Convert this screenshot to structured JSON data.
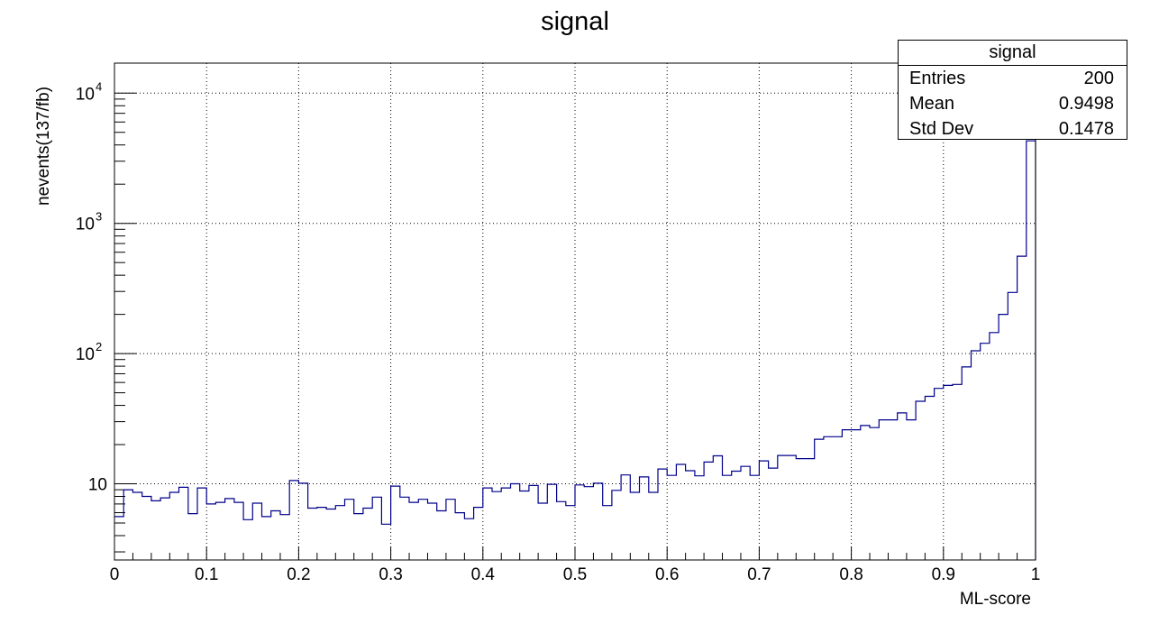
{
  "chart_data": {
    "type": "histogram",
    "title": "signal",
    "xlabel": "ML-score",
    "ylabel": "nevents(137/fb)",
    "xlim": [
      0,
      1
    ],
    "ylim": [
      2.6,
      17000
    ],
    "yscale": "log",
    "grid": true,
    "line_color": "#00008b",
    "bin_width": 0.01,
    "x_ticks": [
      "0",
      "0.1",
      "0.2",
      "0.3",
      "0.4",
      "0.5",
      "0.6",
      "0.7",
      "0.8",
      "0.9",
      "1"
    ],
    "y_ticks": [
      {
        "value": 10,
        "base": "10",
        "exp": ""
      },
      {
        "value": 100,
        "base": "10",
        "exp": "2"
      },
      {
        "value": 1000,
        "base": "10",
        "exp": "3"
      },
      {
        "value": 10000,
        "base": "10",
        "exp": "4"
      }
    ],
    "bin_values": [
      5.6,
      9.0,
      8.6,
      8.0,
      7.4,
      7.8,
      8.6,
      9.4,
      5.9,
      9.3,
      7.0,
      7.2,
      7.7,
      7.2,
      5.3,
      7.1,
      5.6,
      6.2,
      5.8,
      10.6,
      10.1,
      6.5,
      6.6,
      6.4,
      6.8,
      7.6,
      5.9,
      6.5,
      7.9,
      4.9,
      9.6,
      7.9,
      7.2,
      7.6,
      7.1,
      6.2,
      7.6,
      6.0,
      5.4,
      6.6,
      9.3,
      8.7,
      9.3,
      10.0,
      8.8,
      9.7,
      7.1,
      9.9,
      7.3,
      6.8,
      9.8,
      9.5,
      10.1,
      6.8,
      8.9,
      11.7,
      8.6,
      11.3,
      8.6,
      13.0,
      11.6,
      14.1,
      12.6,
      11.5,
      14.7,
      16.4,
      11.6,
      12.5,
      13.6,
      11.6,
      15.0,
      13.2,
      16.5,
      16.5,
      15.6,
      15.6,
      22.0,
      23.0,
      23.0,
      26.0,
      26.0,
      28.0,
      27.0,
      31.0,
      31.0,
      35.0,
      31.0,
      43.0,
      47.0,
      54.0,
      57.0,
      58.0,
      79.0,
      105.0,
      120.0,
      145.0,
      200.0,
      295.0,
      560.0,
      4300.0
    ]
  },
  "stats_box": {
    "title": "signal",
    "rows": [
      {
        "label": "Entries",
        "value": "200"
      },
      {
        "label": "Mean",
        "value": "0.9498"
      },
      {
        "label": "Std Dev",
        "value": "0.1478"
      }
    ]
  }
}
